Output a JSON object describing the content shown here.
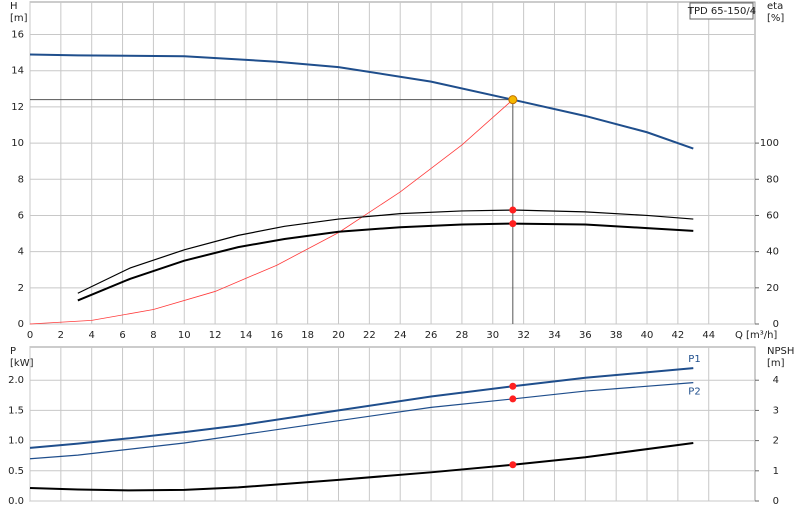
{
  "chart_data": [
    {
      "type": "line",
      "badge": "TPD 65-150/4",
      "y_label_lines": [
        "H",
        "[m]"
      ],
      "y2_label_lines": [
        "eta",
        "[%]"
      ],
      "x_label": "Q [m³/h]",
      "xlim": [
        0,
        47
      ],
      "xticks": [
        0,
        2,
        4,
        6,
        8,
        10,
        12,
        14,
        16,
        18,
        20,
        22,
        24,
        26,
        28,
        30,
        32,
        34,
        36,
        38,
        40,
        42,
        44
      ],
      "ylim": [
        0,
        17.8
      ],
      "yticks": [
        0,
        2,
        4,
        6,
        8,
        10,
        12,
        14,
        16
      ],
      "y2lim": [
        0,
        178
      ],
      "y2ticks": [
        0,
        20,
        40,
        60,
        80,
        100
      ],
      "grid": true,
      "series": [
        {
          "color": "#1f4e8c",
          "width": 2,
          "x": [
            0,
            3.1,
            10,
            16,
            20,
            26,
            31.3,
            36,
            40,
            43
          ],
          "values": [
            14.9,
            14.85,
            14.8,
            14.5,
            14.2,
            13.4,
            12.4,
            11.5,
            10.6,
            9.7
          ]
        },
        {
          "color": "#ff3b3b",
          "width": 0.8,
          "x": [
            0,
            4,
            8,
            12,
            16,
            20,
            24,
            28,
            31.3
          ],
          "values": [
            0,
            0.2,
            0.8,
            1.8,
            3.25,
            5.05,
            7.3,
            9.9,
            12.4
          ]
        },
        {
          "color": "#000000",
          "width": 1.2,
          "axis": "y2",
          "x": [
            3.1,
            6.5,
            10,
            13.5,
            16.5,
            20,
            24,
            28,
            31.3,
            36,
            40,
            43
          ],
          "values": [
            17,
            31,
            41,
            49,
            54,
            58,
            61,
            62.5,
            63,
            62,
            60,
            58
          ]
        },
        {
          "color": "#000000",
          "width": 2,
          "axis": "y2",
          "x": [
            3.1,
            6.5,
            10,
            13.5,
            16.5,
            20,
            24,
            28,
            31.3,
            36,
            40,
            43
          ],
          "values": [
            13,
            25,
            35,
            42.5,
            47,
            51,
            53.5,
            55,
            55.5,
            55,
            53,
            51.5
          ]
        }
      ],
      "operating_point": {
        "x": 31.3,
        "y": 12.4,
        "color": "#f5b800"
      },
      "markers": [
        {
          "x": 31.3,
          "y": 63,
          "axis": "y2",
          "color": "#ff2020"
        },
        {
          "x": 31.3,
          "y": 55.5,
          "axis": "y2",
          "color": "#ff2020"
        }
      ]
    },
    {
      "type": "line",
      "y_label_lines": [
        "P",
        "[kW]"
      ],
      "y2_label_lines": [
        "NPSH",
        "[m]"
      ],
      "xlim": [
        0,
        47
      ],
      "xticks": [
        0,
        2,
        4,
        6,
        8,
        10,
        12,
        14,
        16,
        18,
        20,
        22,
        24,
        26,
        28,
        30,
        32,
        34,
        36,
        38,
        40,
        42,
        44
      ],
      "ylim": [
        0,
        2.55
      ],
      "yticks": [
        {
          "value": 0,
          "label": "0.0"
        },
        {
          "value": 0.5,
          "label": "0.5"
        },
        {
          "value": 1,
          "label": "1.0"
        },
        {
          "value": 1.5,
          "label": "1.5"
        },
        {
          "value": 2,
          "label": "2.0"
        }
      ],
      "y2lim": [
        0,
        5.1
      ],
      "y2ticks": [
        0,
        1,
        2,
        3,
        4
      ],
      "grid": true,
      "series": [
        {
          "name": "P1",
          "color": "#1f4e8c",
          "width": 2,
          "x": [
            0,
            3.1,
            6.5,
            10,
            13.5,
            20,
            26,
            31.3,
            36,
            43
          ],
          "values": [
            0.88,
            0.95,
            1.04,
            1.14,
            1.25,
            1.5,
            1.73,
            1.9,
            2.04,
            2.2
          ]
        },
        {
          "name": "P2",
          "color": "#1f4e8c",
          "width": 1.2,
          "x": [
            0,
            3.1,
            10,
            20,
            26,
            31.3,
            36,
            43
          ],
          "values": [
            0.7,
            0.76,
            0.96,
            1.33,
            1.55,
            1.69,
            1.82,
            1.96
          ]
        },
        {
          "color": "#000000",
          "width": 2,
          "axis": "y2",
          "x": [
            0,
            3.1,
            6.5,
            10,
            13.5,
            20,
            26,
            31.3,
            36,
            43
          ],
          "values": [
            0.43,
            0.38,
            0.35,
            0.37,
            0.45,
            0.7,
            0.95,
            1.2,
            1.45,
            1.92
          ]
        }
      ],
      "markers": [
        {
          "x": 31.3,
          "y": 1.9,
          "color": "#ff2020"
        },
        {
          "x": 31.3,
          "y": 1.69,
          "color": "#ff2020"
        },
        {
          "x": 31.3,
          "y": 1.2,
          "axis": "y2",
          "color": "#ff2020"
        }
      ]
    }
  ]
}
